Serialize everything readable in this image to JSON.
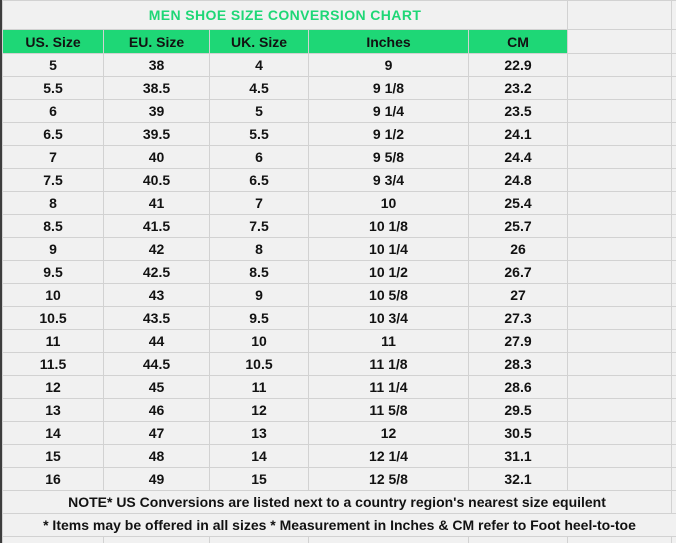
{
  "title": "MEN SHOE SIZE CONVERSION CHART",
  "colors": {
    "accent_green": "#1ED776",
    "text": "#121212",
    "cell_background": "#F1F1F1",
    "gridline": "#D2D2D2"
  },
  "chart_data": {
    "type": "table",
    "title": "MEN SHOE SIZE CONVERSION CHART",
    "columns": [
      "US. Size",
      "EU. Size",
      "UK. Size",
      "Inches",
      "CM"
    ],
    "rows": [
      [
        "5",
        "38",
        "4",
        "9",
        "22.9"
      ],
      [
        "5.5",
        "38.5",
        "4.5",
        "9 1/8",
        "23.2"
      ],
      [
        "6",
        "39",
        "5",
        "9 1/4",
        "23.5"
      ],
      [
        "6.5",
        "39.5",
        "5.5",
        "9 1/2",
        "24.1"
      ],
      [
        "7",
        "40",
        "6",
        "9 5/8",
        "24.4"
      ],
      [
        "7.5",
        "40.5",
        "6.5",
        "9 3/4",
        "24.8"
      ],
      [
        "8",
        "41",
        "7",
        "10",
        "25.4"
      ],
      [
        "8.5",
        "41.5",
        "7.5",
        "10 1/8",
        "25.7"
      ],
      [
        "9",
        "42",
        "8",
        "10 1/4",
        "26"
      ],
      [
        "9.5",
        "42.5",
        "8.5",
        "10 1/2",
        "26.7"
      ],
      [
        "10",
        "43",
        "9",
        "10 5/8",
        "27"
      ],
      [
        "10.5",
        "43.5",
        "9.5",
        "10 3/4",
        "27.3"
      ],
      [
        "11",
        "44",
        "10",
        "11",
        "27.9"
      ],
      [
        "11.5",
        "44.5",
        "10.5",
        "11 1/8",
        "28.3"
      ],
      [
        "12",
        "45",
        "11",
        "11 1/4",
        "28.6"
      ],
      [
        "13",
        "46",
        "12",
        "11 5/8",
        "29.5"
      ],
      [
        "14",
        "47",
        "13",
        "12",
        "30.5"
      ],
      [
        "15",
        "48",
        "14",
        "12 1/4",
        "31.1"
      ],
      [
        "16",
        "49",
        "15",
        "12 5/8",
        "32.1"
      ]
    ]
  },
  "notes": {
    "note1": "NOTE* US Conversions are listed next to a country region's nearest size equilent",
    "note2": "* Items may be offered in all sizes * Measurement in Inches & CM refer to Foot heel-to-toe"
  },
  "partial_row_marker": "*"
}
